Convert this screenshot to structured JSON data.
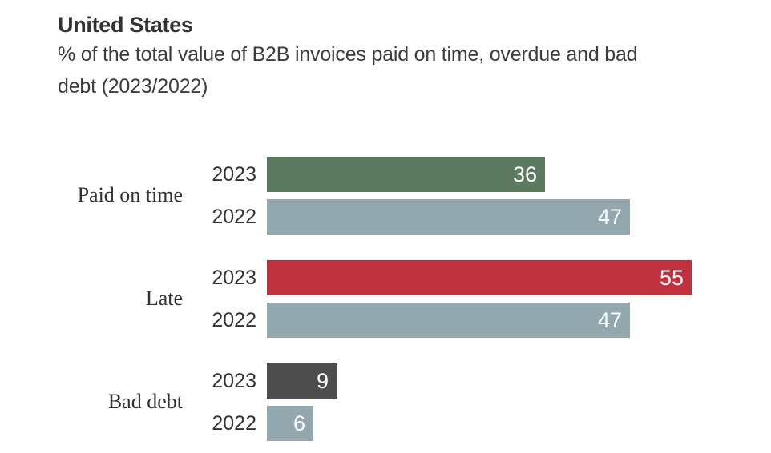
{
  "header": {
    "title": "United States",
    "subtitle": "% of the total value of B2B invoices paid on time, overdue and bad debt (2023/2022)",
    "subtitle_lines": [
      "% of the total value of B2B invoices paid on time, overdue and bad",
      "debt (2023/2022)"
    ]
  },
  "chart_data": {
    "type": "bar",
    "orientation": "horizontal",
    "title": "United States",
    "subtitle": "% of the total value of B2B invoices paid on time, overdue and bad debt (2023/2022)",
    "unit": "%",
    "xlim": [
      0,
      55
    ],
    "grid": false,
    "legend": "none",
    "value_labels": "inside-end, white",
    "categories": [
      "Paid on time",
      "Late",
      "Bad debt"
    ],
    "series": [
      {
        "name": "2023",
        "values": [
          36,
          55,
          9
        ]
      },
      {
        "name": "2022",
        "values": [
          47,
          47,
          6
        ]
      }
    ],
    "groups": [
      {
        "category": "Paid on time",
        "bars": [
          {
            "year": "2023",
            "value": 36,
            "color": "#5b7a60"
          },
          {
            "year": "2022",
            "value": 47,
            "color": "#93a7af"
          }
        ]
      },
      {
        "category": "Late",
        "bars": [
          {
            "year": "2023",
            "value": 55,
            "color": "#c0323d"
          },
          {
            "year": "2022",
            "value": 47,
            "color": "#93a7af"
          }
        ]
      },
      {
        "category": "Bad debt",
        "bars": [
          {
            "year": "2023",
            "value": 9,
            "color": "#4d4d4d"
          },
          {
            "year": "2022",
            "value": 6,
            "color": "#93a7af"
          }
        ]
      }
    ],
    "colors": {
      "series_2022": "#93a7af",
      "paid_on_time_2023": "#5b7a60",
      "late_2023": "#c0323d",
      "bad_debt_2023": "#4d4d4d",
      "text": "#333333",
      "value_text": "#ffffff",
      "background": "#ffffff"
    }
  }
}
